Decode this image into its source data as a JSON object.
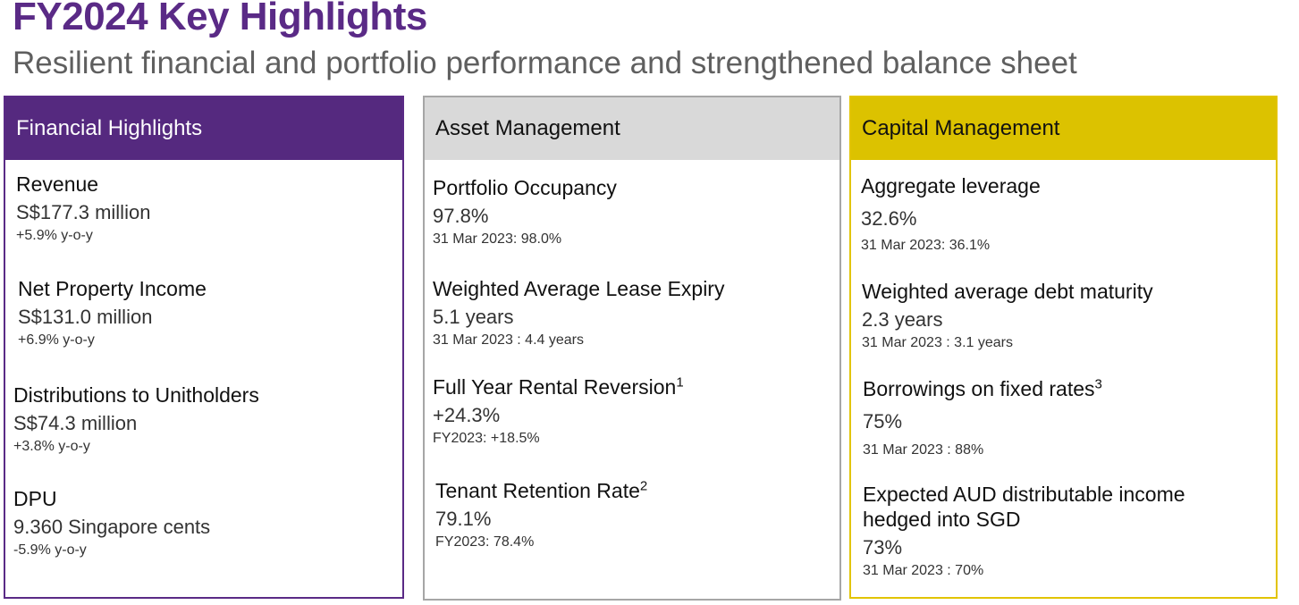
{
  "title": "FY2024 Key Highlights",
  "subtitle": "Resilient financial and portfolio performance and strengthened balance sheet",
  "financial": {
    "header": "Financial Highlights",
    "items": [
      {
        "label": "Revenue",
        "value": "S$177.3 million",
        "change": "+5.9% y-o-y"
      },
      {
        "label": "Net Property Income",
        "value": "S$131.0 million",
        "change": "+6.9% y-o-y"
      },
      {
        "label": "Distributions to Unitholders",
        "value": "S$74.3 million",
        "change": "+3.8% y-o-y"
      },
      {
        "label": "DPU",
        "value": "9.360 Singapore cents",
        "change": "-5.9% y-o-y"
      }
    ]
  },
  "asset": {
    "header": "Asset Management",
    "items": [
      {
        "label": "Portfolio Occupancy",
        "value": "97.8%",
        "compare": "31 Mar 2023: 98.0%"
      },
      {
        "label": "Weighted Average Lease Expiry",
        "value": "5.1 years",
        "compare": "31 Mar 2023 : 4.4 years"
      },
      {
        "label": "Full Year Rental Reversion",
        "footnote": "1",
        "value": "+24.3%",
        "compare": "FY2023:  +18.5%"
      },
      {
        "label": "Tenant Retention Rate",
        "footnote": "2",
        "value": "79.1%",
        "compare": "FY2023: 78.4%"
      }
    ]
  },
  "capital": {
    "header": "Capital Management",
    "items": [
      {
        "label": "Aggregate leverage",
        "value": "32.6%",
        "compare": "31 Mar 2023: 36.1%"
      },
      {
        "label": "Weighted average debt maturity",
        "value": "2.3 years",
        "compare": "31 Mar 2023 : 3.1 years"
      },
      {
        "label": "Borrowings on fixed rates",
        "footnote": "3",
        "value": "75%",
        "compare": "31 Mar 2023 : 88%"
      },
      {
        "label": "Expected AUD distributable income",
        "label2": "hedged into SGD",
        "value": "73%",
        "compare": "31 Mar 2023 : 70%"
      }
    ]
  }
}
